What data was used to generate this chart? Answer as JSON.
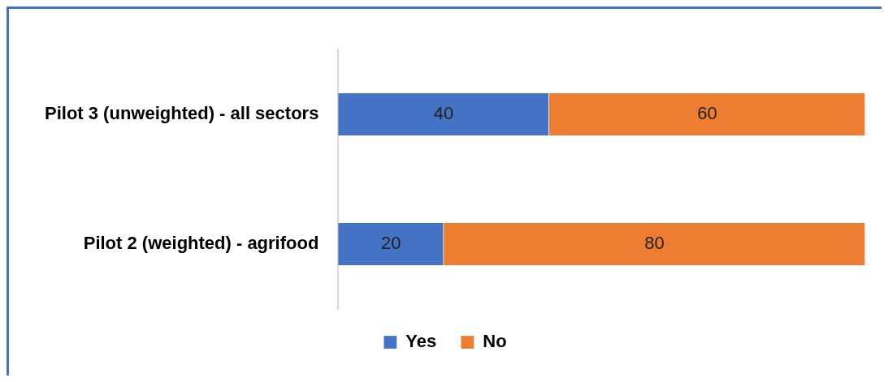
{
  "chart_data": {
    "type": "bar",
    "orientation": "horizontal",
    "stacked": true,
    "categories": [
      "Pilot 3 (unweighted) - all sectors",
      "Pilot 2 (weighted) - agrifood"
    ],
    "series": [
      {
        "name": "Yes",
        "color": "#4472c4",
        "values": [
          40,
          20
        ]
      },
      {
        "name": "No",
        "color": "#ed7d31",
        "values": [
          60,
          80
        ]
      }
    ],
    "data_labels": true,
    "legend": "bottom",
    "grid": false
  }
}
